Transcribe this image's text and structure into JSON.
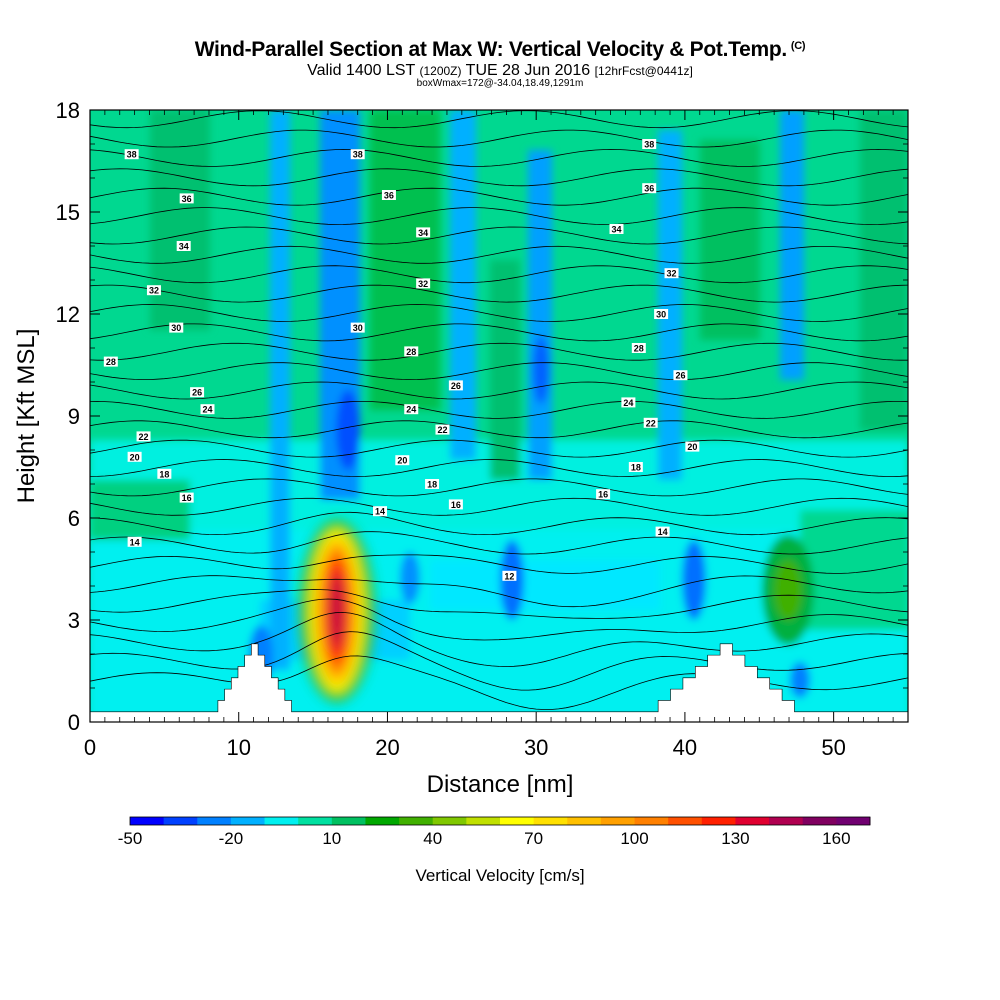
{
  "title": {
    "main": "Wind-Parallel Section at Max W: Vertical Velocity & Pot.Temp.",
    "copyright": "(C)",
    "valid_prefix": "Valid 1400 LST",
    "valid_utc": "(1200Z)",
    "valid_date": "TUE 28 Jun 2016",
    "forecast": "[12hrFcst@0441z]",
    "boxinfo": "boxWmax=172@-34.04,18.49,1291m"
  },
  "chart_data": {
    "type": "heatmap",
    "xlabel": "Distance [nm]",
    "ylabel": "Height [Kft MSL]",
    "xlim": [
      0,
      55
    ],
    "ylim": [
      0,
      18
    ],
    "xticks": [
      0,
      10,
      20,
      30,
      40,
      50
    ],
    "yticks": [
      0,
      3,
      6,
      9,
      12,
      15,
      18
    ],
    "colorbar": {
      "label": "Vertical Velocity [cm/s]",
      "tick_labels": [
        "-50",
        "-20",
        "10",
        "40",
        "70",
        "100",
        "130",
        "160"
      ],
      "tick_values": [
        -50,
        -20,
        10,
        40,
        70,
        100,
        130,
        160
      ],
      "range": [
        -50,
        170
      ],
      "step": 10,
      "colors": [
        "#0000ff",
        "#0040ff",
        "#0080ff",
        "#00b0ff",
        "#00f0f0",
        "#00e0a0",
        "#00c060",
        "#00a800",
        "#40b000",
        "#80c800",
        "#c0e000",
        "#ffff00",
        "#ffe000",
        "#ffc000",
        "#ffa000",
        "#ff8000",
        "#ff5000",
        "#ff2000",
        "#e00030",
        "#b00050",
        "#800060",
        "#700070"
      ]
    },
    "updrafts": [
      {
        "x": 16.6,
        "y_range": [
          0.8,
          6.2
        ],
        "max_w": 172,
        "note": "core cm/s"
      }
    ],
    "theta_contours": [
      {
        "label": "12",
        "x": 28.2,
        "y": 4.3
      },
      {
        "label": "14",
        "x": 3,
        "y": 5.3
      },
      {
        "label": "14",
        "x": 19.5,
        "y": 6.2
      },
      {
        "label": "14",
        "x": 38.5,
        "y": 5.6
      },
      {
        "label": "16",
        "x": 6.5,
        "y": 6.6
      },
      {
        "label": "16",
        "x": 24.6,
        "y": 6.4
      },
      {
        "label": "16",
        "x": 34.5,
        "y": 6.7
      },
      {
        "label": "18",
        "x": 5,
        "y": 7.3
      },
      {
        "label": "18",
        "x": 23,
        "y": 7.0
      },
      {
        "label": "18",
        "x": 36.7,
        "y": 7.5
      },
      {
        "label": "20",
        "x": 3,
        "y": 7.8
      },
      {
        "label": "20",
        "x": 21,
        "y": 7.7
      },
      {
        "label": "20",
        "x": 40.5,
        "y": 8.1
      },
      {
        "label": "22",
        "x": 3.6,
        "y": 8.4
      },
      {
        "label": "22",
        "x": 23.7,
        "y": 8.6
      },
      {
        "label": "22",
        "x": 37.7,
        "y": 8.8
      },
      {
        "label": "24",
        "x": 7.9,
        "y": 9.2
      },
      {
        "label": "24",
        "x": 21.6,
        "y": 9.2
      },
      {
        "label": "24",
        "x": 36.2,
        "y": 9.4
      },
      {
        "label": "26",
        "x": 7.2,
        "y": 9.7
      },
      {
        "label": "26",
        "x": 24.6,
        "y": 9.9
      },
      {
        "label": "26",
        "x": 39.7,
        "y": 10.2
      },
      {
        "label": "28",
        "x": 1.4,
        "y": 10.6
      },
      {
        "label": "28",
        "x": 21.6,
        "y": 10.9
      },
      {
        "label": "28",
        "x": 36.9,
        "y": 11.0
      },
      {
        "label": "30",
        "x": 5.8,
        "y": 11.6
      },
      {
        "label": "30",
        "x": 18,
        "y": 11.6
      },
      {
        "label": "30",
        "x": 38.4,
        "y": 12.0
      },
      {
        "label": "32",
        "x": 4.3,
        "y": 12.7
      },
      {
        "label": "32",
        "x": 22.4,
        "y": 12.9
      },
      {
        "label": "32",
        "x": 39.1,
        "y": 13.2
      },
      {
        "label": "34",
        "x": 6.3,
        "y": 14.0
      },
      {
        "label": "34",
        "x": 22.4,
        "y": 14.4
      },
      {
        "label": "34",
        "x": 35.4,
        "y": 14.5
      },
      {
        "label": "36",
        "x": 6.5,
        "y": 15.4
      },
      {
        "label": "36",
        "x": 20.1,
        "y": 15.5
      },
      {
        "label": "36",
        "x": 37.6,
        "y": 15.7
      },
      {
        "label": "38",
        "x": 2.8,
        "y": 16.7
      },
      {
        "label": "38",
        "x": 18,
        "y": 16.7
      },
      {
        "label": "38",
        "x": 37.6,
        "y": 17.0
      }
    ],
    "terrain": [
      {
        "x": [
          8.6,
          14
        ],
        "peak_height": 2.3
      },
      {
        "x": [
          38.2,
          48.2
        ],
        "peak_height": 2.3
      }
    ],
    "grid": false
  }
}
